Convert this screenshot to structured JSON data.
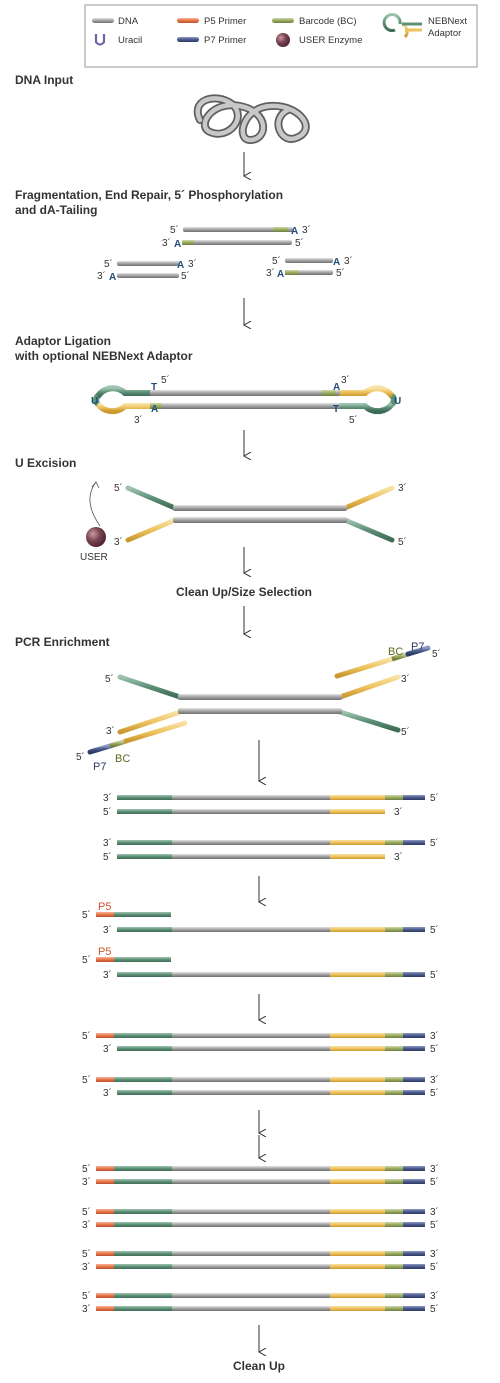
{
  "legend": {
    "dna": "DNA",
    "uracil": "Uracil",
    "p5_primer": "P5 Primer",
    "p7_primer": "P7 Primer",
    "barcode": "Barcode (BC)",
    "user_enzyme": "USER Enzyme",
    "adaptor_line1": "NEBNext",
    "adaptor_line2": "Adaptor"
  },
  "steps": {
    "dna_input": "DNA Input",
    "fragmentation_line1": "Fragmentation, End Repair, 5´ Phosphorylation",
    "fragmentation_line2": "and dA-Tailing",
    "ligation_line1": "Adaptor Ligation",
    "ligation_line2": "with optional NEBNext Adaptor",
    "u_excision": "U Excision",
    "cleanup_size": "Clean Up/Size Selection",
    "pcr_enrichment": "PCR Enrichment",
    "cleanup_final": "Clean Up"
  },
  "labels": {
    "five_prime": "5´",
    "three_prime": "3´",
    "base_a": "A",
    "base_t": "T",
    "base_u": "U",
    "user": "USER",
    "p5": "P5",
    "p7": "P7",
    "bc": "BC"
  },
  "colors": {
    "dna": "#a6a6a6",
    "p5": "#e8744a",
    "p7": "#4a5a8c",
    "barcode": "#9aab62",
    "adaptor_green": "#5e9077",
    "adaptor_yellow": "#eec35e",
    "uracil": "#6d63a8",
    "user_enzyme": "#6e3a46",
    "base": "#1f4e79"
  }
}
